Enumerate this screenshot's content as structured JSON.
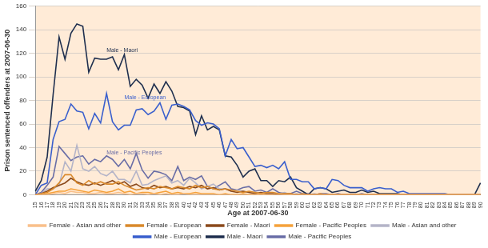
{
  "chart_data": {
    "type": "line",
    "x_label": "Age at 2007-06-30",
    "y_label": "Prison sentenced offenders at 2007-06-30",
    "categories": [
      15,
      16,
      17,
      18,
      19,
      20,
      21,
      22,
      23,
      24,
      25,
      26,
      27,
      28,
      29,
      30,
      31,
      32,
      33,
      34,
      35,
      36,
      37,
      38,
      39,
      40,
      41,
      42,
      43,
      44,
      45,
      46,
      47,
      48,
      49,
      50,
      51,
      52,
      53,
      54,
      55,
      56,
      57,
      58,
      59,
      60,
      61,
      62,
      63,
      64,
      65,
      66,
      67,
      68,
      69,
      70,
      71,
      72,
      73,
      74,
      75,
      76,
      77,
      78,
      79,
      80,
      81,
      82,
      83,
      84,
      85,
      86,
      87,
      88,
      89,
      90
    ],
    "ylim": [
      0,
      160
    ],
    "yticks": [
      0,
      20,
      40,
      60,
      80,
      100,
      120,
      140,
      160
    ],
    "grid": true,
    "legend": "bottom",
    "annotations": [
      {
        "text": "Male - Maori",
        "x": 27,
        "y": 120,
        "color": "#1f2f4f"
      },
      {
        "text": "Male - European",
        "x": 30,
        "y": 80,
        "color": "#3a5fcd"
      },
      {
        "text": "Male - Pacific Peoples",
        "x": 27,
        "y": 33,
        "color": "#6a6ea6"
      }
    ],
    "series": [
      {
        "name": "Female - Asian and other",
        "color": "#f9c08a",
        "values": [
          0,
          0,
          0,
          1,
          2,
          1,
          3,
          2,
          2,
          1,
          1,
          2,
          1,
          1,
          2,
          1,
          0,
          1,
          1,
          0,
          1,
          0,
          1,
          0,
          0,
          1,
          0,
          0,
          0,
          0,
          0,
          0,
          0,
          0,
          0,
          0,
          0,
          0,
          0,
          0,
          0,
          0,
          0,
          0,
          0,
          0,
          0,
          0,
          0,
          0,
          0,
          0,
          0,
          0,
          0,
          0,
          0,
          0,
          0,
          0,
          0,
          0,
          0,
          0,
          0,
          0,
          0,
          0,
          0,
          0,
          0,
          0,
          0,
          0,
          0,
          0
        ]
      },
      {
        "name": "Female - European",
        "color": "#d9892b",
        "values": [
          0,
          1,
          2,
          5,
          10,
          17,
          17,
          10,
          8,
          12,
          9,
          11,
          9,
          9,
          11,
          8,
          6,
          4,
          5,
          6,
          5,
          7,
          6,
          5,
          7,
          6,
          5,
          8,
          6,
          7,
          5,
          4,
          5,
          4,
          3,
          2,
          3,
          2,
          1,
          2,
          2,
          1,
          1,
          1,
          0,
          1,
          0,
          0,
          1,
          0,
          0,
          0,
          0,
          0,
          0,
          0,
          0,
          0,
          0,
          0,
          0,
          0,
          0,
          0,
          0,
          0,
          0,
          0,
          0,
          0,
          0,
          0,
          0,
          0,
          0,
          0
        ]
      },
      {
        "name": "Female - Maori",
        "color": "#8b4a1c",
        "values": [
          0,
          1,
          3,
          6,
          8,
          10,
          14,
          11,
          9,
          8,
          10,
          8,
          10,
          12,
          9,
          11,
          7,
          9,
          6,
          5,
          8,
          6,
          7,
          5,
          6,
          5,
          7,
          6,
          8,
          5,
          6,
          4,
          5,
          3,
          2,
          3,
          2,
          1,
          2,
          1,
          1,
          0,
          1,
          1,
          0,
          0,
          0,
          0,
          0,
          0,
          0,
          0,
          0,
          0,
          0,
          0,
          0,
          0,
          0,
          0,
          0,
          0,
          0,
          0,
          0,
          0,
          0,
          0,
          0,
          0,
          0,
          0,
          0,
          0,
          0,
          0
        ]
      },
      {
        "name": "Female - Pacific Peoples",
        "color": "#f5a23c",
        "values": [
          0,
          0,
          1,
          2,
          3,
          3,
          5,
          4,
          3,
          2,
          4,
          3,
          2,
          3,
          5,
          2,
          3,
          1,
          2,
          2,
          1,
          2,
          3,
          1,
          2,
          1,
          1,
          2,
          1,
          1,
          1,
          0,
          1,
          0,
          0,
          1,
          0,
          0,
          0,
          0,
          0,
          0,
          0,
          0,
          0,
          0,
          0,
          0,
          0,
          0,
          0,
          0,
          0,
          0,
          0,
          0,
          0,
          0,
          0,
          0,
          0,
          0,
          0,
          0,
          0,
          0,
          0,
          0,
          0,
          0,
          0,
          0,
          0,
          0,
          0,
          0
        ]
      },
      {
        "name": "Male - Asian and other",
        "color": "#b4b4c8",
        "values": [
          0,
          1,
          5,
          5,
          8,
          28,
          20,
          42,
          22,
          20,
          24,
          18,
          16,
          20,
          13,
          13,
          10,
          20,
          8,
          9,
          12,
          14,
          16,
          10,
          12,
          8,
          14,
          10,
          5,
          7,
          9,
          5,
          5,
          3,
          4,
          3,
          2,
          2,
          1,
          2,
          1,
          1,
          2,
          0,
          1,
          0,
          0,
          1,
          0,
          0,
          0,
          0,
          0,
          0,
          0,
          0,
          0,
          0,
          0,
          0,
          0,
          0,
          0,
          0,
          0,
          0,
          0,
          0,
          0,
          0,
          0,
          0,
          0,
          0,
          0,
          0
        ]
      },
      {
        "name": "Male - European",
        "color": "#3a5fcd",
        "values": [
          0,
          8,
          10,
          47,
          62,
          64,
          77,
          71,
          70,
          56,
          69,
          61,
          86,
          62,
          55,
          59,
          59,
          72,
          73,
          68,
          71,
          78,
          64,
          76,
          77,
          75,
          72,
          63,
          59,
          61,
          60,
          56,
          33,
          47,
          39,
          40,
          32,
          24,
          25,
          23,
          25,
          22,
          28,
          13,
          13,
          11,
          11,
          5,
          6,
          5,
          13,
          12,
          8,
          6,
          6,
          6,
          3,
          5,
          6,
          5,
          5,
          2,
          3,
          1,
          1,
          1,
          1,
          1,
          1,
          1,
          0,
          0,
          0,
          0,
          0,
          0
        ]
      },
      {
        "name": "Male - Maori",
        "color": "#1f2f4f",
        "values": [
          3,
          12,
          32,
          85,
          134,
          115,
          137,
          145,
          143,
          104,
          116,
          115,
          115,
          117,
          106,
          119,
          92,
          98,
          93,
          82,
          94,
          86,
          96,
          88,
          75,
          74,
          71,
          51,
          67,
          55,
          58,
          55,
          33,
          32,
          25,
          15,
          20,
          22,
          12,
          12,
          7,
          12,
          11,
          15,
          6,
          3,
          0,
          5,
          6,
          5,
          2,
          3,
          4,
          2,
          2,
          4,
          2,
          3,
          1,
          1,
          1,
          1,
          0,
          0,
          0,
          0,
          0,
          0,
          0,
          0,
          0,
          0,
          0,
          0,
          0,
          10
        ]
      },
      {
        "name": "Male - Pacific Peoples",
        "color": "#6a6ea6",
        "values": [
          0,
          2,
          8,
          15,
          41,
          35,
          29,
          32,
          33,
          26,
          30,
          28,
          33,
          30,
          24,
          30,
          22,
          35,
          21,
          14,
          20,
          19,
          17,
          12,
          24,
          12,
          15,
          13,
          16,
          7,
          5,
          8,
          11,
          5,
          4,
          6,
          7,
          3,
          4,
          2,
          5,
          2,
          1,
          1,
          3,
          1,
          1,
          0,
          1,
          1,
          0,
          1,
          0,
          0,
          0,
          1,
          0,
          0,
          0,
          0,
          0,
          0,
          0,
          0,
          0,
          0,
          0,
          0,
          0,
          0,
          0,
          0,
          0,
          0,
          0,
          0
        ]
      }
    ]
  }
}
